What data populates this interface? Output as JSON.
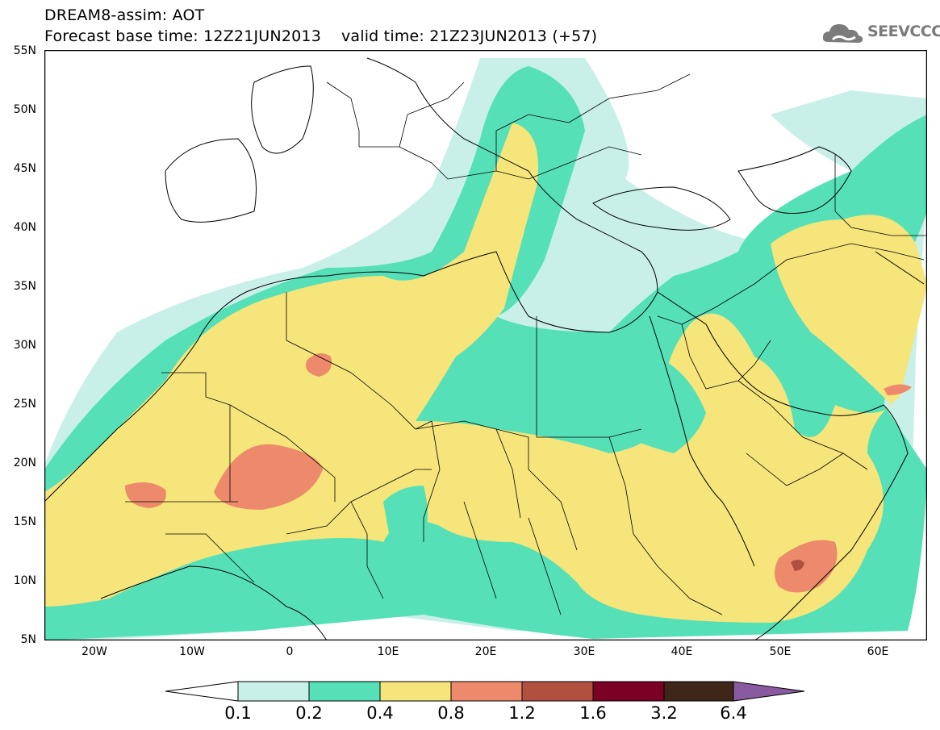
{
  "title": {
    "line1": "DREAM8-assim: AOT",
    "line2": "Forecast base time: 12Z21JUN2013    valid time: 21Z23JUN2013 (+57)"
  },
  "logo": {
    "text": "SEEVCCC"
  },
  "map": {
    "lat_labels": [
      "55N",
      "50N",
      "45N",
      "40N",
      "35N",
      "30N",
      "25N",
      "20N",
      "15N",
      "10N",
      "5N"
    ],
    "lon_labels": [
      "20W",
      "10W",
      "0",
      "10E",
      "20E",
      "30E",
      "40E",
      "50E",
      "60E"
    ],
    "lon_range": [
      -25,
      65
    ],
    "lat_range": [
      5,
      55
    ]
  },
  "colorbar": {
    "labels": [
      "0.1",
      "0.2",
      "0.4",
      "0.8",
      "1.2",
      "1.6",
      "3.2",
      "6.4"
    ],
    "colors": [
      "#ffffff",
      "#c8f0e8",
      "#55e0b8",
      "#f5e57a",
      "#ec8a6b",
      "#b2503f",
      "#7a0025",
      "#3e2618",
      "#8a5aa0"
    ]
  },
  "colors": {
    "level_0_1": "#c8f0e8",
    "level_0_2": "#55e0b8",
    "level_0_4": "#f5e57a",
    "level_0_8": "#ec8a6b",
    "level_1_2": "#b2503f"
  }
}
